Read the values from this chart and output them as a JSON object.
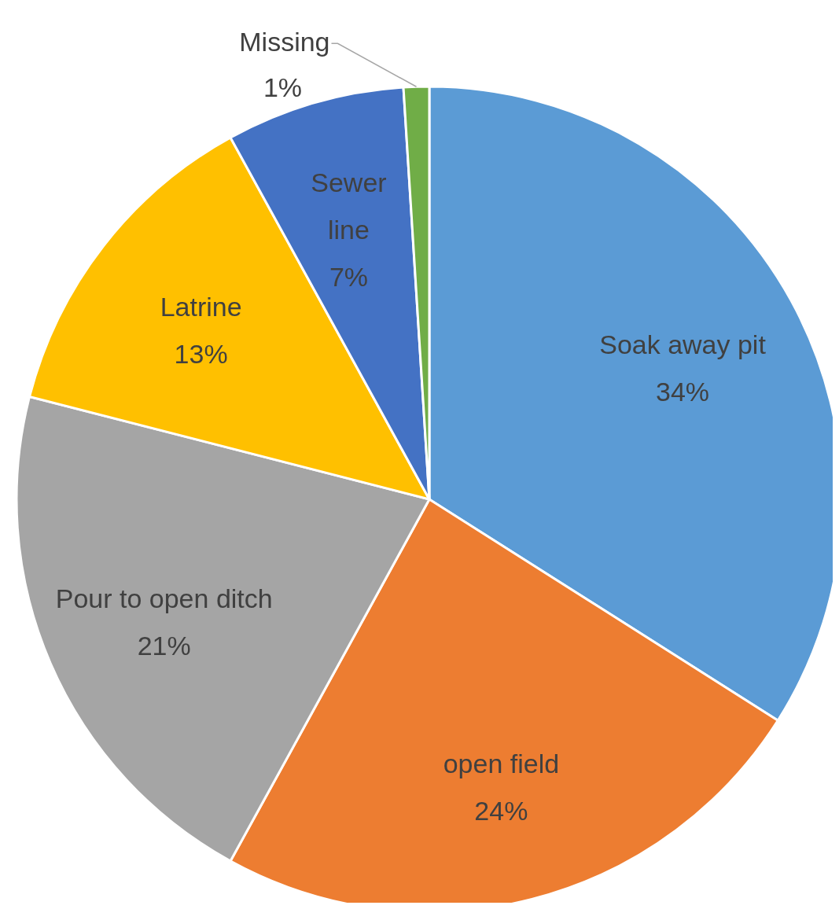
{
  "chart_data": {
    "type": "pie",
    "categories": [
      "Soak away pit",
      "open field",
      "Pour to open ditch",
      "Latrine",
      "Sewer line",
      "Missing"
    ],
    "values": [
      34,
      24,
      21,
      13,
      7,
      1
    ],
    "value_labels": [
      "34%",
      "24%",
      "21%",
      "13%",
      "7%",
      "1%"
    ],
    "colors": [
      "#5b9bd5",
      "#ed7d31",
      "#a5a5a5",
      "#ffc000",
      "#4472c4",
      "#70ad47"
    ]
  }
}
